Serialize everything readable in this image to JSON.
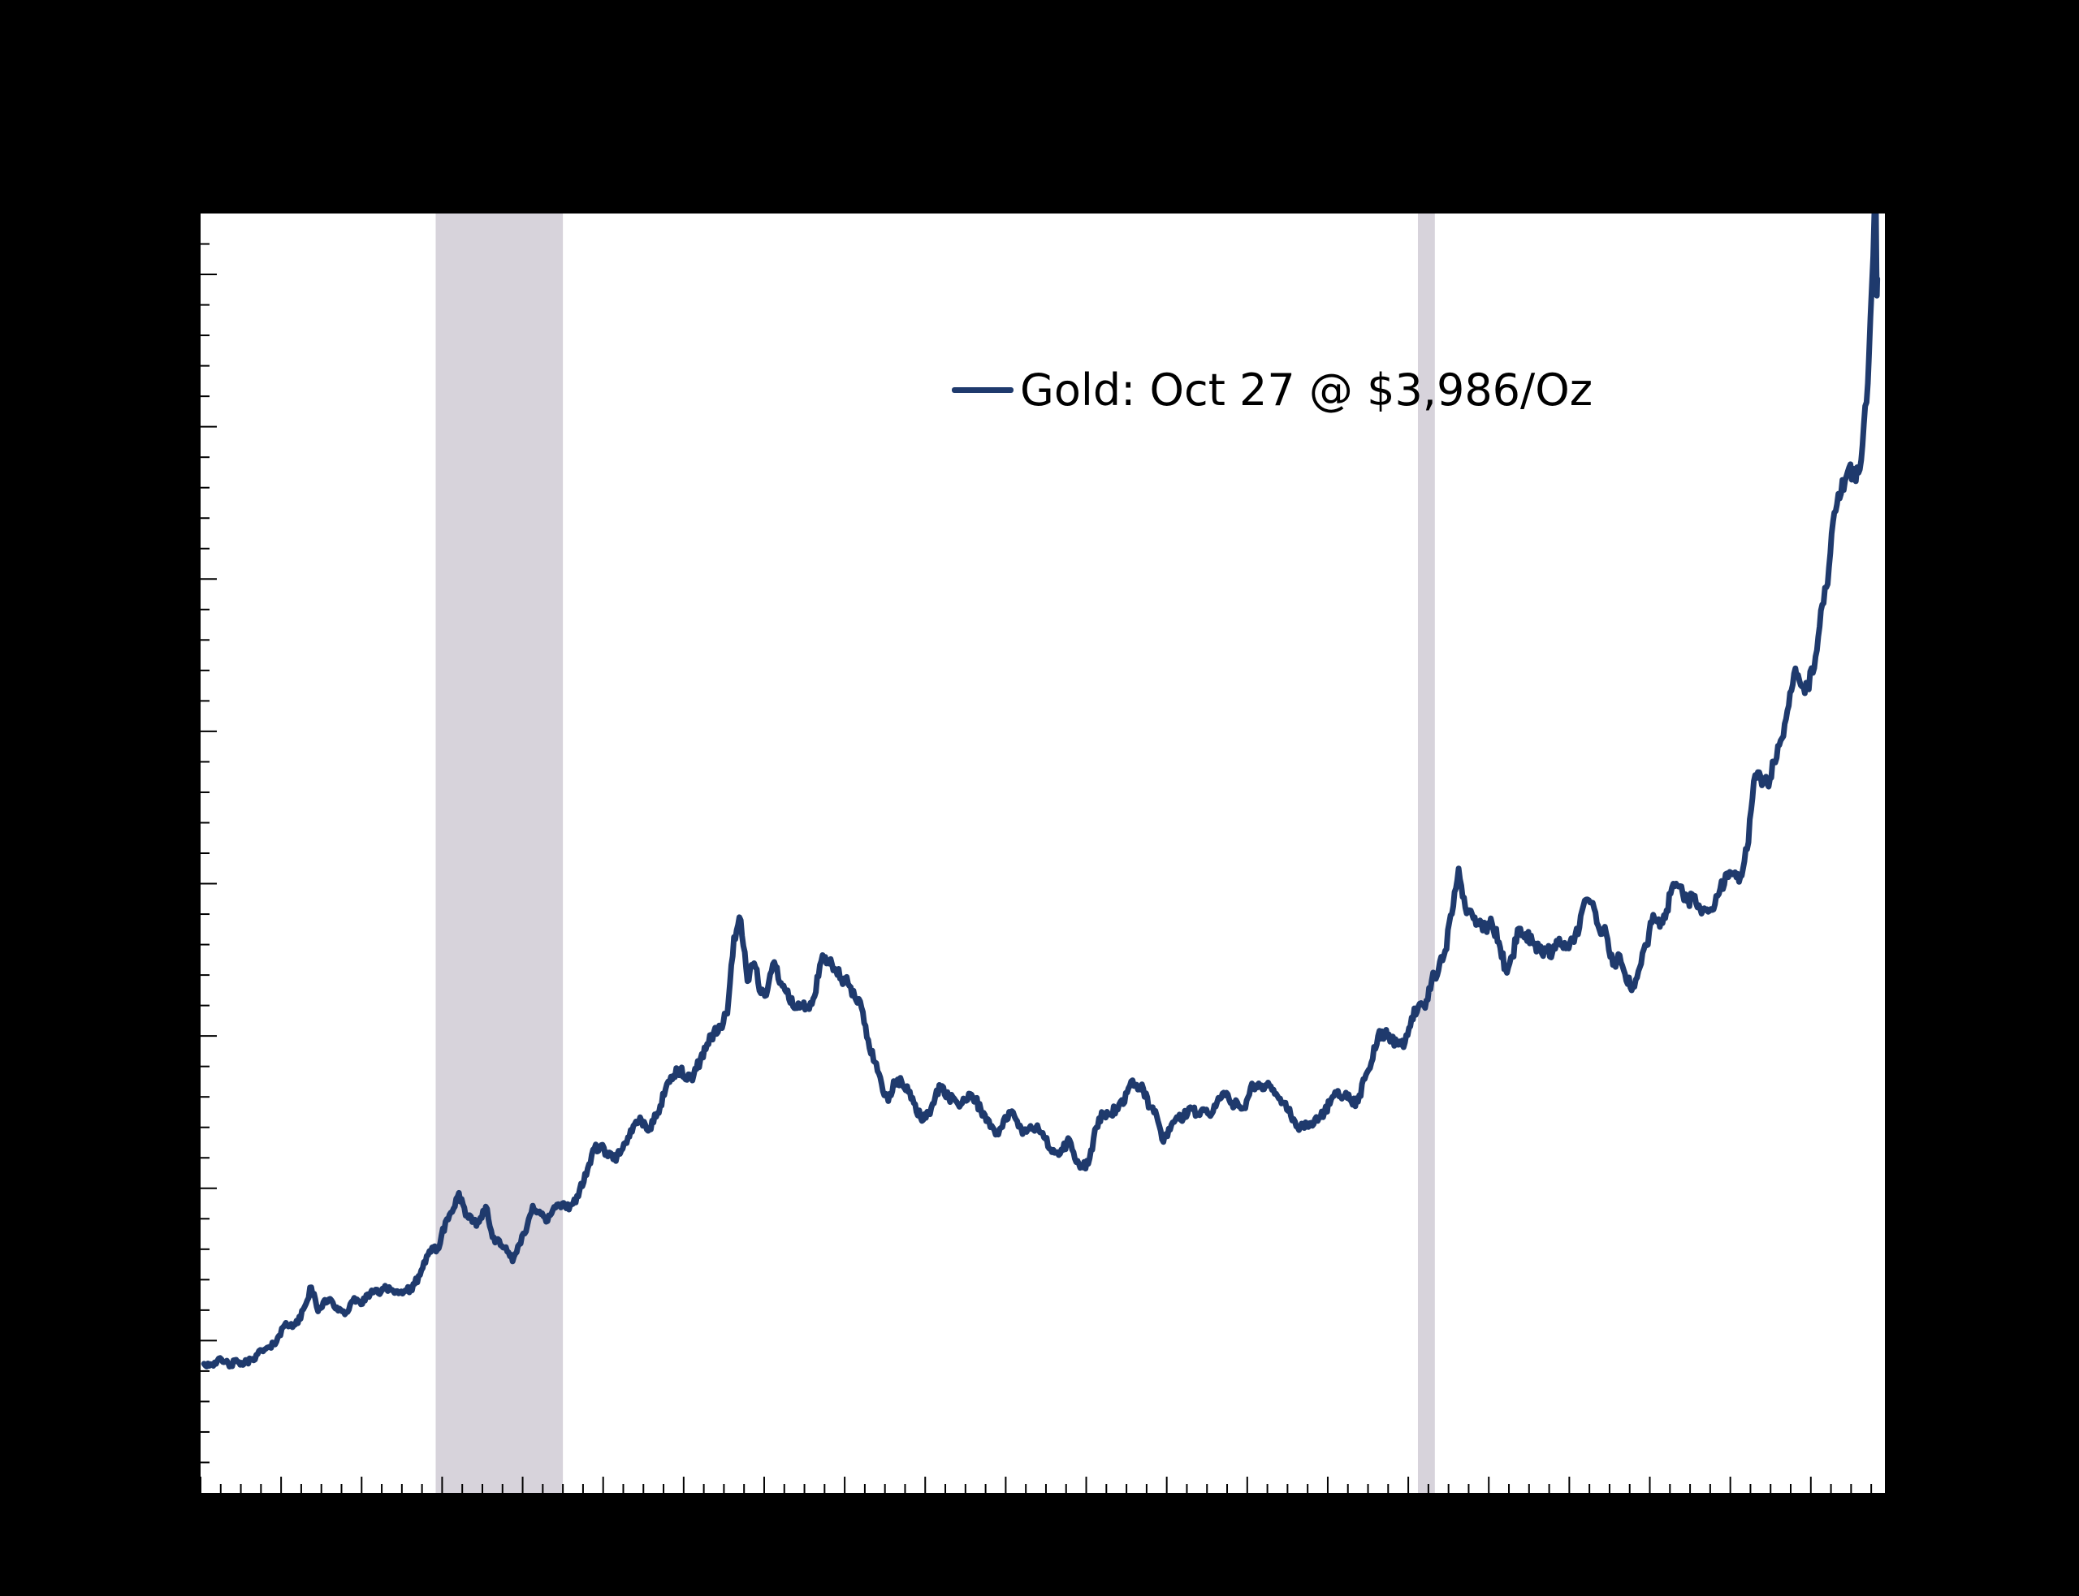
{
  "colors": {
    "figure_background": "#000000",
    "plot_background": "#ffffff",
    "line": "#1f3a6d",
    "recession_band": "#d7d3db",
    "axis": "#000000"
  },
  "chart_data": {
    "type": "line",
    "title": "",
    "legend": {
      "label": "Gold: Oct 27 @ $3,986/Oz",
      "position": "upper center-right, no frame"
    },
    "x_axis": {
      "label": "",
      "min": 2005.0,
      "max": 2025.92,
      "minor_tick_step_years": 0.25,
      "major_tick_step_years": 1,
      "tick_direction": "in",
      "tick_labels_visible": false
    },
    "y_axis": {
      "label": "",
      "min": 0,
      "max": 4200,
      "minor_tick_step": 100,
      "major_tick_step": 500,
      "unit": "USD per troy ounce",
      "tick_direction": "in",
      "tick_labels_visible": false
    },
    "grid": false,
    "shaded_bands": [
      {
        "name": "recession-band-2008-2009",
        "x0": 2007.92,
        "x1": 2009.5,
        "color": "#d7d3db"
      },
      {
        "name": "recession-band-2020",
        "x0": 2020.12,
        "x1": 2020.33,
        "color": "#d7d3db"
      }
    ],
    "last_point": {
      "date": "Oct 27",
      "value_usd_per_oz": 3986
    },
    "series": [
      {
        "name": "Gold: Oct 27 @ $3,986/Oz",
        "color": "#1f3a6d",
        "line_width": 7,
        "x_start": 2005.042,
        "x_step_years": 0.0833333,
        "values": [
          424,
          423,
          434,
          429,
          422,
          430,
          424,
          437,
          456,
          470,
          476,
          510,
          550,
          555,
          557,
          611,
          675,
          596,
          634,
          632,
          598,
          586,
          627,
          630,
          631,
          665,
          655,
          680,
          667,
          655,
          665,
          665,
          713,
          755,
          806,
          803,
          890,
          922,
          985,
          910,
          889,
          889,
          940,
          839,
          829,
          807,
          760,
          816,
          858,
          943,
          924,
          890,
          929,
          946,
          934,
          949,
          996,
          1043,
          1127,
          1135,
          1118,
          1095,
          1113,
          1148,
          1205,
          1233,
          1193,
          1216,
          1271,
          1342,
          1370,
          1391,
          1356,
          1373,
          1424,
          1474,
          1512,
          1529,
          1573,
          1825,
          1880,
          1680,
          1739,
          1640,
          1652,
          1743,
          1674,
          1650,
          1591,
          1598,
          1594,
          1630,
          1745,
          1747,
          1721,
          1688,
          1671,
          1628,
          1593,
          1487,
          1414,
          1343,
          1286,
          1347,
          1348,
          1316,
          1276,
          1221,
          1244,
          1301,
          1336,
          1298,
          1288,
          1279,
          1311,
          1296,
          1238,
          1222,
          1176,
          1201,
          1251,
          1227,
          1178,
          1198,
          1199,
          1182,
          1130,
          1117,
          1125,
          1159,
          1086,
          1068,
          1098,
          1200,
          1246,
          1242,
          1261,
          1276,
          1337,
          1340,
          1327,
          1266,
          1238,
          1152,
          1192,
          1234,
          1231,
          1266,
          1246,
          1260,
          1237,
          1283,
          1314,
          1280,
          1282,
          1264,
          1331,
          1331,
          1325,
          1335,
          1303,
          1281,
          1238,
          1201,
          1198,
          1215,
          1221,
          1250,
          1292,
          1320,
          1301,
          1286,
          1284,
          1359,
          1413,
          1500,
          1511,
          1495,
          1471,
          1479,
          1561,
          1597,
          1592,
          1683,
          1716,
          1780,
          1900,
          2050,
          1922,
          1900,
          1866,
          1858,
          1867,
          1808,
          1718,
          1762,
          1853,
          1835,
          1807,
          1784,
          1777,
          1777,
          1820,
          1787,
          1817,
          1856,
          1948,
          1937,
          1848,
          1837,
          1733,
          1765,
          1681,
          1664,
          1725,
          1797,
          1898,
          1858,
          1913,
          2000,
          1992,
          1943,
          1951,
          1918,
          1916,
          1915,
          1984,
          2034,
          2034,
          2023,
          2113,
          2336,
          2351,
          2327,
          2398,
          2470,
          2568,
          2690,
          2651,
          2644,
          2708,
          2897,
          2983,
          3218,
          3280,
          3353,
          3338,
          3390,
          3643
        ],
        "tail": [
          [
            2025.72,
            3720
          ],
          [
            2025.74,
            3860
          ],
          [
            2025.758,
            3960
          ],
          [
            2025.775,
            4060
          ],
          [
            2025.79,
            4210
          ],
          [
            2025.8,
            4380
          ],
          [
            2025.805,
            4340
          ],
          [
            2025.81,
            4160
          ],
          [
            2025.815,
            4020
          ],
          [
            2025.82,
            3930
          ],
          [
            2025.825,
            3986
          ]
        ]
      }
    ]
  }
}
